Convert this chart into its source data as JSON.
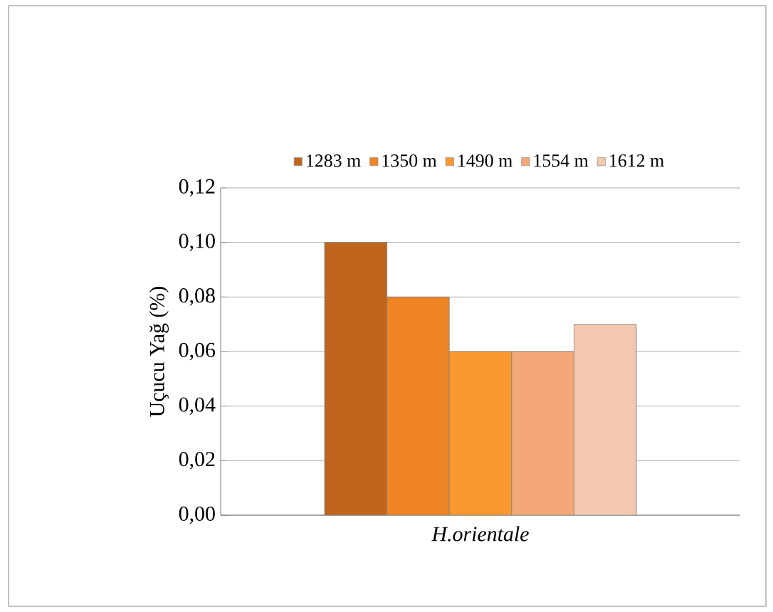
{
  "chart_data": {
    "type": "bar",
    "categories": [
      "H.orientale"
    ],
    "ylabel": "Uçucu Yağ (%)",
    "series": [
      {
        "name": "1283 m",
        "color": "#c0651e",
        "values": [
          0.1
        ]
      },
      {
        "name": "1350 m",
        "color": "#ee8424",
        "values": [
          0.08
        ]
      },
      {
        "name": "1490 m",
        "color": "#f8982e",
        "values": [
          0.06
        ]
      },
      {
        "name": "1554 m",
        "color": "#f4a87a",
        "values": [
          0.06
        ]
      },
      {
        "name": "1612 m",
        "color": "#f2c8ae",
        "values": [
          0.07
        ]
      }
    ],
    "ylim": [
      0,
      0.12
    ],
    "yticks": [
      {
        "value": 0,
        "label": "0,00"
      },
      {
        "value": 0.02,
        "label": "0,02"
      },
      {
        "value": 0.04,
        "label": "0,04"
      },
      {
        "value": 0.06,
        "label": "0,06"
      },
      {
        "value": 0.08,
        "label": "0,08"
      },
      {
        "value": 0.1,
        "label": "0,10"
      },
      {
        "value": 0.12,
        "label": "0,12"
      }
    ],
    "grid": "y",
    "legend": "top"
  }
}
